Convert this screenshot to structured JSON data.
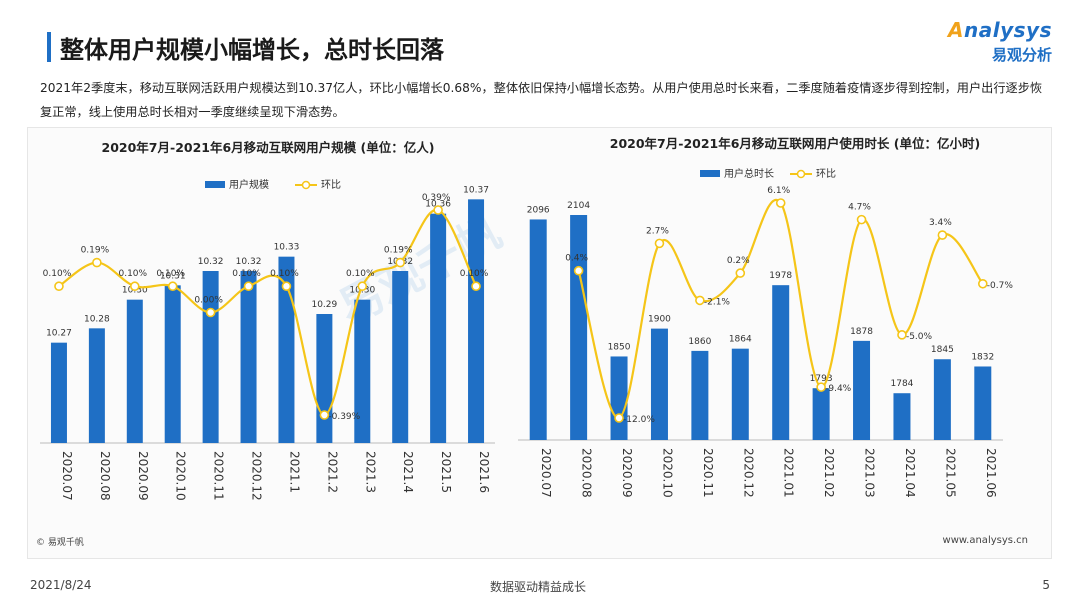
{
  "header": {
    "title": "整体用户规模小幅增长，总时长回落",
    "logo_prefix": "A",
    "logo_rest": "nalysys",
    "logo_cn": "易观分析"
  },
  "description": "2021年2季度末，移动互联网活跃用户规模达到10.37亿人，环比小幅增长0.68%，整体依旧保持小幅增长态势。从用户使用总时长来看，二季度随着疫情逐步得到控制，用户出行逐步恢复正常，线上使用总时长相对一季度继续呈现下滑态势。",
  "watermark": "易观千帆",
  "colors": {
    "bar": "#1f6fc5",
    "line": "#f5c518",
    "accent": "#1f6fc5"
  },
  "chart_data": [
    {
      "type": "bar",
      "title": "2020年7月-2021年6月移动互联网用户规模 (单位：亿人)",
      "categories": [
        "2020.07",
        "2020.08",
        "2020.09",
        "2020.10",
        "2020.11",
        "2020.12",
        "2021.1",
        "2021.2",
        "2021.3",
        "2021.4",
        "2021.5",
        "2021.6"
      ],
      "series": [
        {
          "name": "用户规模",
          "type": "bar",
          "values": [
            10.27,
            10.28,
            10.3,
            10.31,
            10.32,
            10.32,
            10.33,
            10.29,
            10.3,
            10.32,
            10.36,
            10.37
          ],
          "labels": [
            "10.27",
            "10.28",
            "10.30",
            "10.31",
            "10.32",
            "10.32",
            "10.33",
            "10.29",
            "10.30",
            "10.32",
            "10.36",
            "10.37"
          ]
        },
        {
          "name": "环比",
          "type": "line",
          "values": [
            0.1,
            0.19,
            0.1,
            0.1,
            0.0,
            0.1,
            0.1,
            -0.39,
            0.1,
            0.19,
            0.39,
            0.1
          ],
          "labels": [
            "0.10%",
            "0.19%",
            "0.10%",
            "0.10%",
            "0.00%",
            "0.10%",
            "0.10%",
            "-0.39%",
            "0.10%",
            "0.19%",
            "0.39%",
            "0.10%"
          ]
        }
      ],
      "legend": "top"
    },
    {
      "type": "bar",
      "title": "2020年7月-2021年6月移动互联网用户使用时长 (单位：亿小时)",
      "categories": [
        "2020.07",
        "2020.08",
        "2020.09",
        "2020.10",
        "2020.11",
        "2020.12",
        "2021.01",
        "2021.02",
        "2021.03",
        "2021.04",
        "2021.05",
        "2021.06"
      ],
      "series": [
        {
          "name": "用户总时长",
          "type": "bar",
          "values": [
            2096,
            2104,
            1850,
            1900,
            1860,
            1864,
            1978,
            1793,
            1878,
            1784,
            1845,
            1832
          ],
          "labels": [
            "2096",
            "2104",
            "1850",
            "1900",
            "1860",
            "1864",
            "1978",
            "1793",
            "1878",
            "1784",
            "1845",
            "1832"
          ]
        },
        {
          "name": "环比",
          "type": "line",
          "values": [
            null,
            0.4,
            -12.0,
            2.7,
            -2.1,
            0.2,
            6.1,
            -9.4,
            4.7,
            -5.0,
            3.4,
            -0.7
          ],
          "labels": [
            "",
            "0.4%",
            "-12.0%",
            "2.7%",
            "-2.1%",
            "0.2%",
            "6.1%",
            "-9.4%",
            "4.7%",
            "-5.0%",
            "3.4%",
            "-0.7%"
          ]
        }
      ],
      "legend": "top"
    }
  ],
  "footer": {
    "source": "© 易观千帆",
    "site": "www.analysys.cn",
    "date": "2021/8/24",
    "slogan": "数据驱动精益成长",
    "page": "5"
  }
}
